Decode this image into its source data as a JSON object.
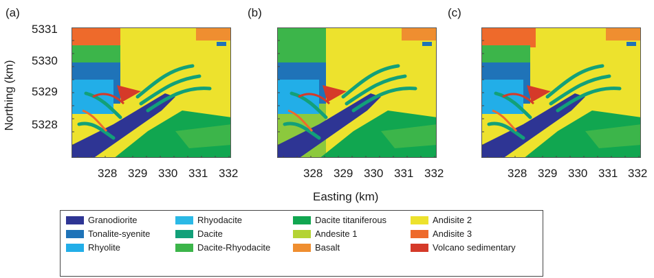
{
  "panels": [
    {
      "label": "(a)"
    },
    {
      "label": "(b)"
    },
    {
      "label": "(c)"
    }
  ],
  "y_axis": {
    "title": "Northing (km)",
    "ticks": [
      "5331",
      "5330",
      "5329",
      "5328"
    ]
  },
  "x_axis": {
    "title": "Easting (km)",
    "ticks": [
      "328",
      "329",
      "330",
      "331",
      "332"
    ]
  },
  "legend": {
    "items": [
      {
        "label": "Granodiorite",
        "color": "#2e3594"
      },
      {
        "label": "Tonalite-syenite",
        "color": "#1f73b8"
      },
      {
        "label": "Rhyolite",
        "color": "#22aee8"
      },
      {
        "label": "Rhyodacite",
        "color": "#2bb9e6"
      },
      {
        "label": "Dacite",
        "color": "#12a079"
      },
      {
        "label": "Dacite-Rhyodacite",
        "color": "#3cb54a"
      },
      {
        "label": "Dacite titaniferous",
        "color": "#11a650"
      },
      {
        "label": "Andesite 1",
        "color": "#b4d334"
      },
      {
        "label": "Basalt",
        "color": "#ef8e30"
      },
      {
        "label": "Andisite 2",
        "color": "#ede22d"
      },
      {
        "label": "Andisite 3",
        "color": "#ee6a2b"
      },
      {
        "label": "Volcano sedimentary",
        "color": "#d53a29"
      }
    ]
  }
}
